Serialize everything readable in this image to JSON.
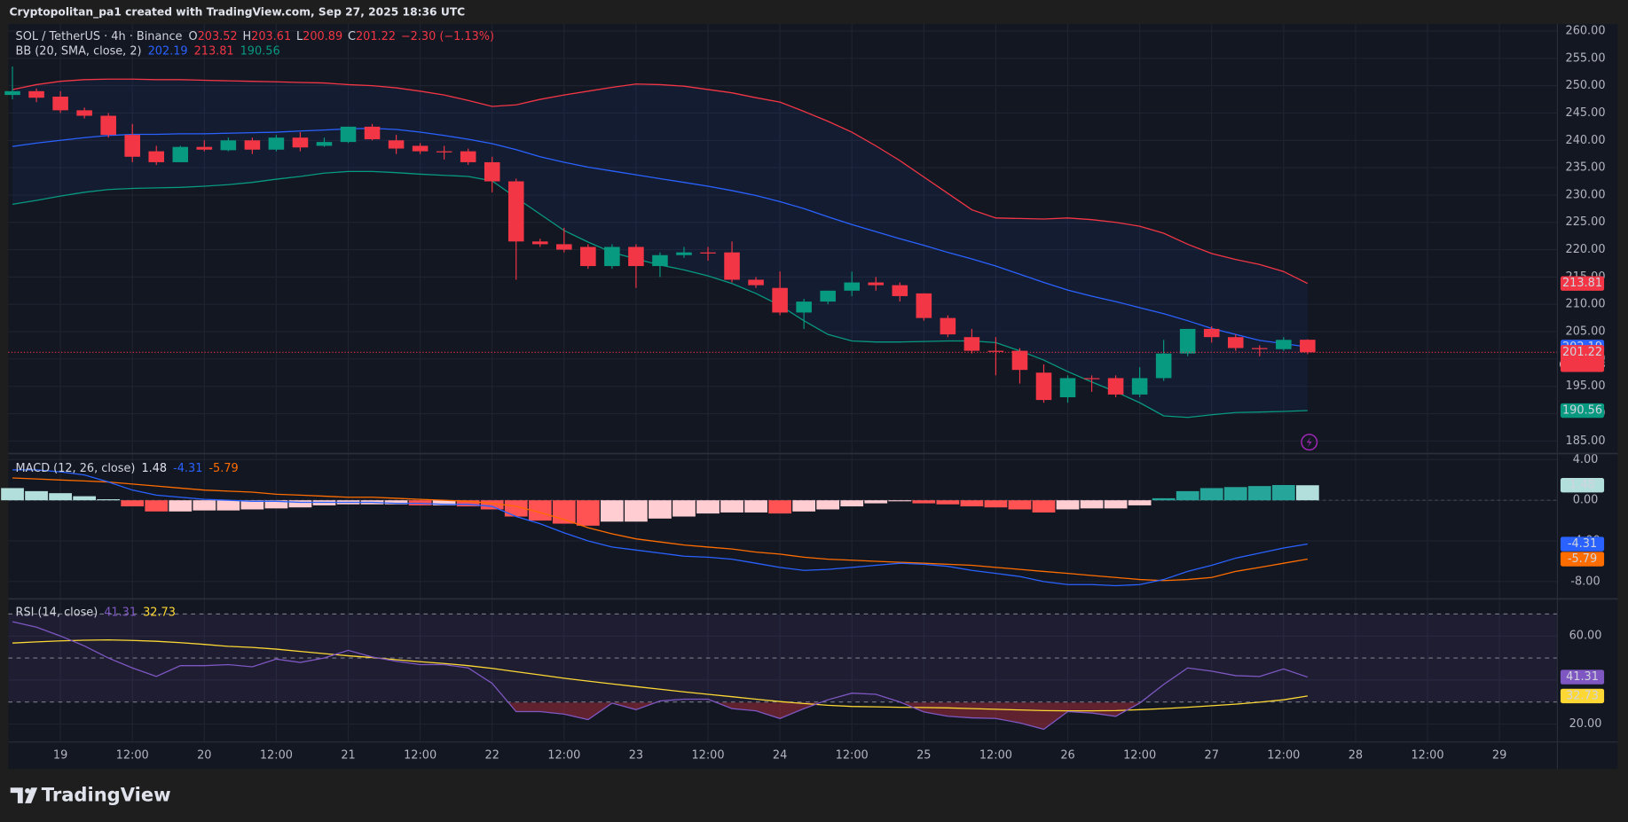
{
  "header": {
    "credit": "Cryptopolitan_pa1 created with TradingView.com, Sep 27, 2025 18:36 UTC"
  },
  "footer": {
    "brand": "TradingView"
  },
  "chart_data": [
    {
      "type": "candlestick",
      "title": "SOL / TetherUS · 4h · Binance",
      "ohlc_labels": [
        "O",
        "H",
        "L",
        "C"
      ],
      "change": "−2.30 (−1.13%)",
      "countdown": "01:23:03",
      "open": [
        248.3,
        249.0,
        248.0,
        245.5,
        244.5,
        241.0,
        238.0,
        236.0,
        238.8,
        238.2,
        240.0,
        238.3,
        240.5,
        239.0,
        239.7,
        242.5,
        240.0,
        239.0,
        238.0,
        238.0,
        236.0,
        232.5,
        221.5,
        221.0,
        220.5,
        217.0,
        220.5,
        217.0,
        219.0,
        219.5,
        219.5,
        214.5,
        213.0,
        208.5,
        210.5,
        212.5,
        214.0,
        213.5,
        212.0,
        207.5,
        204.0,
        201.5,
        201.5,
        197.5,
        193.0,
        196.5,
        196.5,
        193.5,
        196.5,
        201.0,
        205.5,
        204.0,
        202.0,
        201.8,
        203.52
      ],
      "high": [
        253.5,
        249.5,
        249.0,
        246.0,
        245.0,
        243.0,
        239.0,
        239.0,
        240.0,
        240.5,
        240.5,
        241.0,
        241.5,
        240.5,
        242.5,
        243.0,
        241.0,
        239.5,
        239.0,
        238.5,
        237.0,
        233.0,
        222.0,
        224.0,
        221.0,
        221.0,
        221.0,
        219.5,
        220.5,
        220.5,
        221.5,
        215.0,
        216.0,
        211.0,
        212.5,
        216.0,
        215.0,
        214.0,
        212.0,
        208.0,
        205.5,
        204.0,
        202.0,
        199.0,
        197.0,
        197.0,
        197.0,
        198.5,
        203.5,
        205.5,
        206.0,
        204.5,
        202.5,
        204.0,
        203.61
      ],
      "low": [
        247.5,
        247.0,
        245.0,
        244.0,
        240.5,
        236.0,
        235.5,
        236.0,
        238.0,
        238.0,
        237.5,
        238.0,
        238.0,
        238.8,
        239.5,
        240.0,
        237.5,
        237.5,
        236.5,
        235.5,
        230.5,
        214.5,
        220.5,
        219.5,
        216.5,
        216.5,
        213.0,
        215.0,
        218.5,
        218.0,
        214.0,
        213.0,
        208.0,
        205.5,
        210.0,
        211.5,
        212.5,
        210.5,
        207.0,
        204.0,
        201.0,
        197.0,
        195.5,
        192.0,
        192.0,
        194.0,
        193.0,
        193.0,
        196.0,
        200.5,
        203.0,
        201.5,
        200.5,
        201.5,
        200.89
      ],
      "close": [
        249.0,
        247.8,
        245.5,
        244.5,
        241.0,
        237.0,
        236.0,
        238.8,
        238.3,
        240.0,
        238.3,
        240.5,
        238.7,
        239.7,
        242.5,
        240.2,
        238.5,
        238.0,
        237.8,
        236.0,
        232.5,
        221.5,
        221.0,
        220.0,
        217.0,
        220.5,
        217.0,
        219.0,
        219.5,
        219.3,
        214.5,
        213.5,
        208.5,
        210.5,
        212.5,
        214.0,
        213.5,
        211.5,
        207.5,
        204.5,
        201.5,
        201.3,
        198.0,
        192.5,
        196.5,
        196.3,
        193.5,
        196.5,
        201.0,
        205.5,
        204.0,
        202.0,
        201.8,
        203.5,
        201.22
      ],
      "up_color": "#089981",
      "down_color": "#f23645",
      "bb": {
        "label": "BB (20, SMA, close, 2)",
        "basis": [
          238.9,
          239.5,
          240.0,
          240.5,
          240.9,
          241.1,
          241.1,
          241.2,
          241.2,
          241.3,
          241.4,
          241.5,
          241.7,
          241.9,
          242.1,
          242.2,
          242.0,
          241.5,
          240.9,
          240.2,
          239.4,
          238.3,
          237.0,
          236.0,
          235.1,
          234.4,
          233.7,
          233.0,
          232.3,
          231.6,
          230.8,
          229.9,
          228.8,
          227.5,
          226.0,
          224.6,
          223.3,
          222.0,
          220.8,
          219.5,
          218.3,
          217.0,
          215.5,
          214.0,
          212.6,
          211.5,
          210.5,
          209.4,
          208.3,
          207.0,
          205.6,
          204.5,
          203.4,
          202.8,
          202.19
        ],
        "upper": [
          249.3,
          250.2,
          250.8,
          251.1,
          251.2,
          251.2,
          251.1,
          251.1,
          251.0,
          250.9,
          250.8,
          250.7,
          250.6,
          250.5,
          250.2,
          250.0,
          249.6,
          249.0,
          248.3,
          247.3,
          246.2,
          246.5,
          247.5,
          248.3,
          249.0,
          249.7,
          250.3,
          250.2,
          249.9,
          249.3,
          248.7,
          247.8,
          247.0,
          245.3,
          243.5,
          241.5,
          239.0,
          236.3,
          233.3,
          230.3,
          227.3,
          225.8,
          225.7,
          225.6,
          225.8,
          225.5,
          225.0,
          224.3,
          223.0,
          221.0,
          219.3,
          218.2,
          217.3,
          216.0,
          213.81
        ],
        "lower": [
          228.3,
          229.0,
          229.8,
          230.5,
          231.0,
          231.2,
          231.3,
          231.4,
          231.6,
          231.9,
          232.3,
          232.9,
          233.4,
          234.0,
          234.3,
          234.3,
          234.1,
          233.8,
          233.6,
          233.4,
          232.6,
          229.5,
          226.5,
          223.5,
          221.4,
          219.5,
          218.3,
          217.2,
          216.3,
          215.2,
          213.8,
          212.0,
          209.8,
          207.0,
          204.5,
          203.3,
          203.1,
          203.1,
          203.2,
          203.3,
          203.3,
          203.0,
          201.5,
          199.8,
          197.7,
          195.8,
          194.0,
          192.0,
          189.6,
          189.3,
          189.8,
          190.2,
          190.3,
          190.4,
          190.56
        ],
        "basis_color": "#2962ff",
        "upper_color": "#f23645",
        "lower_color": "#089981",
        "fill_color": "#2962ff"
      },
      "ylim": [
        182.7,
        261.3
      ],
      "yticks": [
        {
          "value": 185,
          "label": "185.00"
        },
        {
          "value": 190,
          "label": "190.00"
        },
        {
          "value": 195,
          "label": "195.00"
        },
        {
          "value": 200,
          "label": "200.00"
        },
        {
          "value": 205,
          "label": "205.00"
        },
        {
          "value": 210,
          "label": "210.00"
        },
        {
          "value": 215,
          "label": "215.00"
        },
        {
          "value": 220,
          "label": "220.00"
        },
        {
          "value": 225,
          "label": "225.00"
        },
        {
          "value": 230,
          "label": "230.00"
        },
        {
          "value": 235,
          "label": "235.00"
        },
        {
          "value": 240,
          "label": "240.00"
        },
        {
          "value": 245,
          "label": "245.00"
        },
        {
          "value": 250,
          "label": "250.00"
        },
        {
          "value": 255,
          "label": "255.00"
        },
        {
          "value": 260,
          "label": "260.00"
        }
      ],
      "grid": true
    },
    {
      "type": "macd",
      "label": "MACD (12, 26, close)",
      "histogram": [
        1.2,
        0.9,
        0.7,
        0.4,
        0.1,
        -0.6,
        -1.1,
        -1.1,
        -1.0,
        -1.0,
        -0.9,
        -0.8,
        -0.7,
        -0.5,
        -0.4,
        -0.4,
        -0.4,
        -0.5,
        -0.5,
        -0.6,
        -0.9,
        -1.6,
        -2.0,
        -2.3,
        -2.5,
        -2.1,
        -2.1,
        -1.8,
        -1.6,
        -1.3,
        -1.2,
        -1.2,
        -1.3,
        -1.1,
        -0.9,
        -0.6,
        -0.3,
        -0.1,
        -0.3,
        -0.4,
        -0.6,
        -0.7,
        -0.9,
        -1.2,
        -0.9,
        -0.8,
        -0.8,
        -0.5,
        0.2,
        0.9,
        1.2,
        1.3,
        1.4,
        1.5,
        1.48
      ],
      "macd": [
        3.0,
        3.0,
        2.8,
        2.5,
        1.8,
        1.0,
        0.5,
        0.3,
        0.1,
        0.0,
        -0.1,
        -0.1,
        -0.2,
        -0.2,
        -0.2,
        -0.2,
        -0.3,
        -0.3,
        -0.4,
        -0.4,
        -0.6,
        -1.6,
        -2.3,
        -3.2,
        -4.0,
        -4.6,
        -4.9,
        -5.2,
        -5.5,
        -5.6,
        -5.8,
        -6.2,
        -6.6,
        -6.9,
        -6.8,
        -6.6,
        -6.4,
        -6.2,
        -6.3,
        -6.5,
        -6.9,
        -7.2,
        -7.5,
        -8.0,
        -8.3,
        -8.3,
        -8.4,
        -8.3,
        -7.8,
        -7.0,
        -6.4,
        -5.7,
        -5.2,
        -4.7,
        -4.31
      ],
      "signal": [
        2.2,
        2.1,
        2.0,
        1.9,
        1.8,
        1.6,
        1.4,
        1.2,
        1.0,
        0.9,
        0.8,
        0.6,
        0.5,
        0.4,
        0.3,
        0.3,
        0.2,
        0.1,
        0.0,
        -0.1,
        -0.3,
        -0.6,
        -1.2,
        -1.9,
        -2.7,
        -3.3,
        -3.8,
        -4.1,
        -4.4,
        -4.6,
        -4.8,
        -5.1,
        -5.3,
        -5.6,
        -5.8,
        -5.9,
        -6.0,
        -6.1,
        -6.2,
        -6.3,
        -6.4,
        -6.6,
        -6.8,
        -7.0,
        -7.2,
        -7.4,
        -7.6,
        -7.8,
        -7.9,
        -7.8,
        -7.6,
        -7.0,
        -6.6,
        -6.2,
        -5.79
      ],
      "hist_colors": [
        "#26a69a",
        "#b2dfdb",
        "#ff5252",
        "#ffcdd2"
      ],
      "macd_color": "#2962ff",
      "signal_color": "#ff6d00",
      "ylim": [
        -9.7,
        4.6
      ],
      "yticks": [
        {
          "value": -8,
          "label": "-8.00"
        },
        {
          "value": -4,
          "label": "-4.00"
        },
        {
          "value": 0,
          "label": "0.00"
        },
        {
          "value": 4,
          "label": "4.00"
        }
      ]
    },
    {
      "type": "rsi",
      "label": "RSI (14, close)",
      "rsi": [
        66.5,
        64.0,
        60.0,
        55.5,
        50.0,
        45.5,
        41.6,
        46.5,
        46.5,
        47.0,
        46.0,
        49.5,
        48.0,
        50.0,
        53.5,
        50.5,
        48.5,
        47.0,
        47.0,
        45.5,
        38.5,
        25.6,
        25.6,
        24.5,
        22.0,
        29.5,
        26.5,
        30.5,
        31.3,
        31.3,
        27.0,
        26.0,
        22.5,
        27.0,
        31.0,
        34.0,
        33.5,
        30.0,
        25.5,
        23.5,
        22.8,
        22.5,
        20.5,
        17.6,
        25.6,
        25.0,
        23.5,
        29.5,
        38.0,
        45.5,
        44.0,
        42.0,
        41.6,
        45.0,
        41.31
      ],
      "rsi_ma": [
        56.8,
        57.3,
        57.8,
        58.1,
        58.2,
        58.0,
        57.6,
        57.0,
        56.2,
        55.3,
        54.8,
        54.0,
        53.0,
        52.0,
        51.0,
        50.2,
        49.2,
        48.3,
        47.5,
        46.5,
        45.3,
        43.8,
        42.3,
        40.8,
        39.5,
        38.2,
        37.0,
        35.8,
        34.6,
        33.5,
        32.4,
        31.3,
        30.2,
        29.3,
        28.5,
        28.0,
        27.8,
        27.6,
        27.5,
        27.3,
        27.0,
        26.7,
        26.4,
        26.1,
        26.0,
        26.0,
        26.1,
        26.5,
        27.0,
        27.6,
        28.3,
        29.0,
        29.9,
        31.0,
        32.73
      ],
      "rsi_color": "#7e57c2",
      "ma_color": "#fdd835",
      "bands": [
        70,
        50,
        30
      ],
      "ylim": [
        11.8,
        76.9
      ],
      "yticks": [
        {
          "value": 20,
          "label": "20.00"
        },
        {
          "value": 40,
          "label": "40.00"
        },
        {
          "value": 60,
          "label": "60.00"
        }
      ],
      "time_labels": [
        "19",
        "12:00",
        "20",
        "12:00",
        "21",
        "12:00",
        "22",
        "12:00",
        "23",
        "12:00",
        "24",
        "12:00",
        "25",
        "12:00",
        "26",
        "12:00",
        "27",
        "12:00",
        "28",
        "12:00",
        "29"
      ]
    }
  ]
}
